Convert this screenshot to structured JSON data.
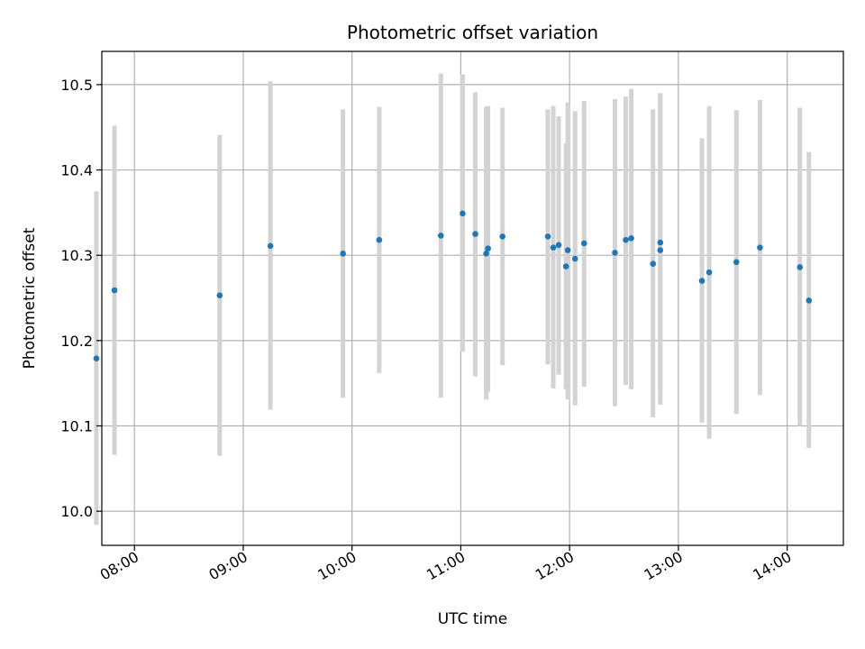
{
  "chart_data": {
    "type": "scatter",
    "title": "Photometric offset variation",
    "xlabel": "UTC time",
    "ylabel": "Photometric offset",
    "x_tick_labels": [
      "08:00",
      "09:00",
      "10:00",
      "11:00",
      "12:00",
      "13:00",
      "14:00"
    ],
    "x_tick_hours": [
      8,
      9,
      10,
      11,
      12,
      13,
      14
    ],
    "y_tick_labels": [
      "10.0",
      "10.1",
      "10.2",
      "10.3",
      "10.4",
      "10.5"
    ],
    "y_ticks": [
      10.0,
      10.1,
      10.2,
      10.3,
      10.4,
      10.5
    ],
    "xlim": [
      "07:42",
      "14:31"
    ],
    "ylim": [
      9.96,
      10.539
    ],
    "grid": true,
    "point_color": "#1f77b4",
    "errorbar_color": "#d3d3d3",
    "series": [
      {
        "points": [
          {
            "time": "07:39",
            "value": 10.179,
            "low": 9.984,
            "high": 10.375
          },
          {
            "time": "07:49",
            "value": 10.259,
            "low": 10.066,
            "high": 10.452
          },
          {
            "time": "08:47",
            "value": 10.253,
            "low": 10.065,
            "high": 10.441
          },
          {
            "time": "09:15",
            "value": 10.311,
            "low": 10.119,
            "high": 10.504
          },
          {
            "time": "09:55",
            "value": 10.302,
            "low": 10.133,
            "high": 10.471
          },
          {
            "time": "10:15",
            "value": 10.318,
            "low": 10.162,
            "high": 10.474
          },
          {
            "time": "10:49",
            "value": 10.323,
            "low": 10.133,
            "high": 10.513
          },
          {
            "time": "11:01",
            "value": 10.349,
            "low": 10.187,
            "high": 10.512
          },
          {
            "time": "11:08",
            "value": 10.325,
            "low": 10.158,
            "high": 10.491
          },
          {
            "time": "11:14",
            "value": 10.302,
            "low": 10.131,
            "high": 10.474
          },
          {
            "time": "11:15",
            "value": 10.308,
            "low": 10.14,
            "high": 10.475
          },
          {
            "time": "11:23",
            "value": 10.322,
            "low": 10.171,
            "high": 10.473
          },
          {
            "time": "11:48",
            "value": 10.322,
            "low": 10.172,
            "high": 10.471
          },
          {
            "time": "11:51",
            "value": 10.309,
            "low": 10.144,
            "high": 10.475
          },
          {
            "time": "11:54",
            "value": 10.312,
            "low": 10.16,
            "high": 10.463
          },
          {
            "time": "11:58",
            "value": 10.287,
            "low": 10.143,
            "high": 10.431
          },
          {
            "time": "11:59",
            "value": 10.306,
            "low": 10.131,
            "high": 10.479
          },
          {
            "time": "12:03",
            "value": 10.296,
            "low": 10.124,
            "high": 10.469
          },
          {
            "time": "12:08",
            "value": 10.314,
            "low": 10.146,
            "high": 10.481
          },
          {
            "time": "12:25",
            "value": 10.303,
            "low": 10.123,
            "high": 10.483
          },
          {
            "time": "12:31",
            "value": 10.318,
            "low": 10.148,
            "high": 10.486
          },
          {
            "time": "12:34",
            "value": 10.32,
            "low": 10.143,
            "high": 10.495
          },
          {
            "time": "12:46",
            "value": 10.29,
            "low": 10.11,
            "high": 10.471
          },
          {
            "time": "12:50",
            "value": 10.306,
            "low": 10.125,
            "high": 10.49
          },
          {
            "time": "12:50",
            "value": 10.315,
            "low": 10.14,
            "high": 10.49
          },
          {
            "time": "13:13",
            "value": 10.27,
            "low": 10.104,
            "high": 10.437
          },
          {
            "time": "13:17",
            "value": 10.28,
            "low": 10.085,
            "high": 10.475
          },
          {
            "time": "13:32",
            "value": 10.292,
            "low": 10.114,
            "high": 10.47
          },
          {
            "time": "13:45",
            "value": 10.309,
            "low": 10.136,
            "high": 10.482
          },
          {
            "time": "14:07",
            "value": 10.286,
            "low": 10.1,
            "high": 10.473
          },
          {
            "time": "14:12",
            "value": 10.247,
            "low": 10.074,
            "high": 10.421
          }
        ]
      }
    ]
  }
}
